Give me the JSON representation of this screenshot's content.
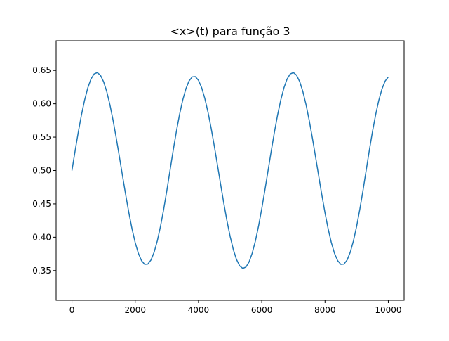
{
  "chart_data": {
    "type": "line",
    "title": "<x>(t) para função 3",
    "xlabel": "",
    "ylabel": "",
    "xlim": [
      -500,
      10500
    ],
    "ylim": [
      0.3055,
      0.6945
    ],
    "xticks": [
      0,
      2000,
      4000,
      6000,
      8000,
      10000
    ],
    "xtick_labels": [
      "0",
      "2000",
      "4000",
      "6000",
      "8000",
      "10000"
    ],
    "yticks": [
      0.35,
      0.4,
      0.45,
      0.5,
      0.55,
      0.6,
      0.65
    ],
    "ytick_labels": [
      "0.35",
      "0.40",
      "0.45",
      "0.50",
      "0.55",
      "0.60",
      "0.65"
    ],
    "grid": false,
    "legend": "none",
    "series": [
      {
        "color": "#1f77b4",
        "x": [
          0,
          100,
          200,
          300,
          400,
          500,
          600,
          700,
          800,
          900,
          1000,
          1100,
          1200,
          1300,
          1400,
          1500,
          1600,
          1700,
          1800,
          1900,
          2000,
          2100,
          2200,
          2300,
          2400,
          2500,
          2600,
          2700,
          2800,
          2900,
          3000,
          3100,
          3200,
          3300,
          3400,
          3500,
          3600,
          3700,
          3800,
          3900,
          4000,
          4100,
          4200,
          4300,
          4400,
          4500,
          4600,
          4700,
          4800,
          4900,
          5000,
          5100,
          5200,
          5300,
          5400,
          5500,
          5600,
          5700,
          5800,
          5900,
          6000,
          6100,
          6200,
          6300,
          6400,
          6500,
          6600,
          6700,
          6800,
          6900,
          7000,
          7100,
          7200,
          7300,
          7400,
          7500,
          7600,
          7700,
          7800,
          7900,
          8000,
          8100,
          8200,
          8300,
          8400,
          8500,
          8600,
          8700,
          8800,
          8900,
          9000,
          9100,
          9200,
          9300,
          9400,
          9500,
          9600,
          9700,
          9800,
          9900,
          10000
        ],
        "y": [
          0.5,
          0.5292,
          0.5573,
          0.5831,
          0.6055,
          0.6237,
          0.637,
          0.6448,
          0.6468,
          0.6429,
          0.6332,
          0.6183,
          0.5987,
          0.5753,
          0.5489,
          0.5207,
          0.4918,
          0.4634,
          0.4365,
          0.4124,
          0.3919,
          0.3758,
          0.3648,
          0.3593,
          0.3597,
          0.3659,
          0.3778,
          0.3948,
          0.4164,
          0.4418,
          0.47,
          0.5,
          0.53,
          0.5582,
          0.5836,
          0.6052,
          0.6222,
          0.6341,
          0.6403,
          0.6407,
          0.6352,
          0.6242,
          0.6081,
          0.5876,
          0.5635,
          0.5366,
          0.5082,
          0.4793,
          0.4511,
          0.4247,
          0.4013,
          0.3817,
          0.3668,
          0.3571,
          0.3532,
          0.3552,
          0.363,
          0.3763,
          0.3945,
          0.4169,
          0.4427,
          0.4708,
          0.5,
          0.5292,
          0.5573,
          0.5831,
          0.6055,
          0.6237,
          0.637,
          0.6448,
          0.6468,
          0.6429,
          0.6332,
          0.6183,
          0.5987,
          0.5753,
          0.5489,
          0.5207,
          0.4918,
          0.4634,
          0.4365,
          0.4124,
          0.3919,
          0.3758,
          0.3648,
          0.3593,
          0.3597,
          0.3659,
          0.3778,
          0.3948,
          0.4164,
          0.4418,
          0.47,
          0.5,
          0.53,
          0.5582,
          0.5836,
          0.6052,
          0.6222,
          0.6341,
          0.6403
        ]
      }
    ]
  }
}
